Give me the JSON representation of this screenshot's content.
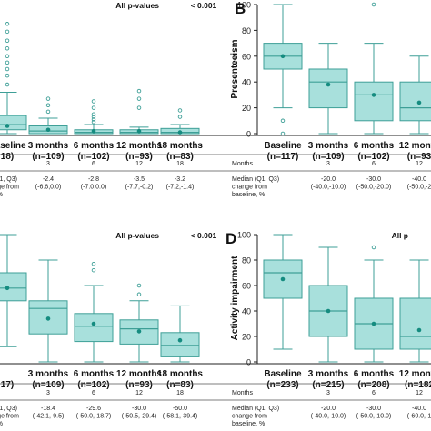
{
  "chart_data": [
    {
      "type": "boxplot",
      "panel_label": "",
      "pvalue_text": "All p-values",
      "pvalue_value": "< 0.001",
      "ylabel": "",
      "ylim": [
        0,
        100
      ],
      "show_y_axis": false,
      "categories": [
        {
          "label": "Baseline",
          "n": "18)"
        },
        {
          "label": "3 months",
          "n": "(n=109)"
        },
        {
          "label": "6 months",
          "n": "(n=102)"
        },
        {
          "label": "12 months",
          "n": "(n=93)"
        },
        {
          "label": "18 months",
          "n": "(n=83)"
        }
      ],
      "boxes": [
        {
          "whisker_low": 0,
          "q1": 3,
          "median": 7,
          "q3": 14,
          "whisker_high": 32,
          "mean": 6,
          "outliers": [
            38,
            45,
            50,
            55,
            60,
            66,
            72,
            79,
            85
          ]
        },
        {
          "whisker_low": 0,
          "q1": 0,
          "median": 2,
          "q3": 6,
          "whisker_high": 12,
          "mean": 3,
          "outliers": [
            17,
            22,
            27
          ]
        },
        {
          "whisker_low": 0,
          "q1": 0,
          "median": 1,
          "q3": 3,
          "whisker_high": 7,
          "mean": 2,
          "outliers": [
            9,
            11,
            13,
            15,
            20,
            25
          ]
        },
        {
          "whisker_low": 0,
          "q1": 0,
          "median": 1,
          "q3": 3,
          "whisker_high": 5,
          "mean": 2,
          "outliers": [
            20,
            27,
            33
          ]
        },
        {
          "whisker_low": 0,
          "q1": 0,
          "median": 1,
          "q3": 4,
          "whisker_high": 7,
          "mean": 1,
          "outliers": [
            13,
            18
          ]
        }
      ],
      "table": {
        "row1_label": "ns",
        "row1_values": [
          "",
          "3",
          "6",
          "12",
          "18"
        ],
        "row2_label": [
          "an (Q1, Q3)",
          "change from",
          "line, %"
        ],
        "row2_values": [
          [
            "",
            ""
          ],
          [
            "-2.4",
            "(-6.6,0.0)"
          ],
          [
            "-2.8",
            "(-7.0,0.0)"
          ],
          [
            "-3.5",
            "(-7.7,-0.2)"
          ],
          [
            "-3.2",
            "(-7.2,-1.4)"
          ]
        ]
      }
    },
    {
      "type": "boxplot",
      "panel_label": "B",
      "pvalue_text": "",
      "pvalue_value": "",
      "ylabel": "Presenteeism",
      "ylim": [
        0,
        100
      ],
      "yticks": [
        0,
        20,
        40,
        60,
        80,
        100
      ],
      "show_y_axis": true,
      "categories": [
        {
          "label": "Baseline",
          "n": "(n=117)"
        },
        {
          "label": "3 months",
          "n": "(n=109)"
        },
        {
          "label": "6 months",
          "n": "(n=102)"
        },
        {
          "label": "12 month",
          "n": "(n=93"
        }
      ],
      "boxes": [
        {
          "whisker_low": 20,
          "q1": 50,
          "median": 60,
          "q3": 70,
          "whisker_high": 100,
          "mean": 60,
          "outliers": [
            0,
            10
          ]
        },
        {
          "whisker_low": 0,
          "q1": 20,
          "median": 40,
          "q3": 50,
          "whisker_high": 70,
          "mean": 38,
          "outliers": []
        },
        {
          "whisker_low": 0,
          "q1": 10,
          "median": 30,
          "q3": 40,
          "whisker_high": 70,
          "mean": 30,
          "outliers": [
            100
          ]
        },
        {
          "whisker_low": 0,
          "q1": 10,
          "median": 20,
          "q3": 40,
          "whisker_high": 60,
          "mean": 24,
          "outliers": []
        }
      ],
      "table": {
        "row1_label": "Months",
        "row1_values": [
          "",
          "3",
          "6",
          "12"
        ],
        "row2_label": [
          "Median (Q1, Q3)",
          "change from",
          "baseline, %"
        ],
        "row2_values": [
          [
            "",
            ""
          ],
          [
            "-20.0",
            "(-40.0,-10.0)"
          ],
          [
            "-30.0",
            "(-50.0,-20.0)"
          ],
          [
            "-40.0",
            "(-50.0,-2"
          ]
        ]
      }
    },
    {
      "type": "boxplot",
      "panel_label": "",
      "pvalue_text": "All p-values",
      "pvalue_value": "< 0.001",
      "ylabel": "",
      "ylim": [
        0,
        100
      ],
      "show_y_axis": false,
      "categories": [
        {
          "label": "",
          "n": "17)"
        },
        {
          "label": "3 months",
          "n": "(n=109)"
        },
        {
          "label": "6 months",
          "n": "(n=102)"
        },
        {
          "label": "12 months",
          "n": "(n=93)"
        },
        {
          "label": "18 months",
          "n": "(n=83)"
        }
      ],
      "boxes": [
        {
          "whisker_low": 12,
          "q1": 48,
          "median": 58,
          "q3": 70,
          "whisker_high": 100,
          "mean": 58,
          "outliers": []
        },
        {
          "whisker_low": 0,
          "q1": 22,
          "median": 42,
          "q3": 48,
          "whisker_high": 80,
          "mean": 34,
          "outliers": []
        },
        {
          "whisker_low": 0,
          "q1": 16,
          "median": 28,
          "q3": 38,
          "whisker_high": 60,
          "mean": 30,
          "outliers": [
            72,
            77
          ]
        },
        {
          "whisker_low": 0,
          "q1": 14,
          "median": 26,
          "q3": 33,
          "whisker_high": 48,
          "mean": 24,
          "outliers": [
            53,
            60
          ]
        },
        {
          "whisker_low": 0,
          "q1": 4,
          "median": 13,
          "q3": 23,
          "whisker_high": 44,
          "mean": 17,
          "outliers": []
        }
      ],
      "table": {
        "row1_label": "ns",
        "row1_values": [
          "",
          "3",
          "6",
          "12",
          "18"
        ],
        "row2_label": [
          "an (Q1, Q3)",
          "change from",
          "line, %"
        ],
        "row2_values": [
          [
            "",
            ""
          ],
          [
            "-18.4",
            "(-42.1,-9.5)"
          ],
          [
            "-29.6",
            "(-50.0,-18.7)"
          ],
          [
            "-30.0",
            "(-50.5,-29.4)"
          ],
          [
            "-50.0",
            "(-58.1,-39.4)"
          ]
        ]
      }
    },
    {
      "type": "boxplot",
      "panel_label": "D",
      "pvalue_text": "All p",
      "pvalue_value": "",
      "ylabel": "Activity impairment",
      "ylim": [
        0,
        100
      ],
      "yticks": [
        0,
        20,
        40,
        60,
        80,
        100
      ],
      "show_y_axis": true,
      "categories": [
        {
          "label": "Baseline",
          "n": "(n=233)"
        },
        {
          "label": "3 months",
          "n": "(n=215)"
        },
        {
          "label": "6 months",
          "n": "(n=208)"
        },
        {
          "label": "12 month",
          "n": "(n=182"
        }
      ],
      "boxes": [
        {
          "whisker_low": 10,
          "q1": 50,
          "median": 70,
          "q3": 80,
          "whisker_high": 100,
          "mean": 65,
          "outliers": []
        },
        {
          "whisker_low": 0,
          "q1": 20,
          "median": 40,
          "q3": 60,
          "whisker_high": 90,
          "mean": 40,
          "outliers": []
        },
        {
          "whisker_low": 0,
          "q1": 10,
          "median": 30,
          "q3": 50,
          "whisker_high": 80,
          "mean": 30,
          "outliers": [
            90
          ]
        },
        {
          "whisker_low": 0,
          "q1": 10,
          "median": 20,
          "q3": 50,
          "whisker_high": 80,
          "mean": 25,
          "outliers": []
        }
      ],
      "table": {
        "row1_label": "Months",
        "row1_values": [
          "",
          "3",
          "6",
          "12"
        ],
        "row2_label": [
          "Median (Q1, Q3)",
          "change from",
          "baseline, %"
        ],
        "row2_values": [
          [
            "",
            ""
          ],
          [
            "-20.0",
            "(-40.0,-10.0)"
          ],
          [
            "-30.0",
            "(-50.0,-10.0)"
          ],
          [
            "-40.0",
            "(-60.0,-1"
          ]
        ]
      }
    }
  ],
  "colors": {
    "box_fill": "#a8e0dc",
    "box_stroke": "#3e9f97",
    "mean_marker": "#158c80",
    "outlier": "#3e9f97",
    "axis": "#222222",
    "table_rule": "#555555"
  }
}
